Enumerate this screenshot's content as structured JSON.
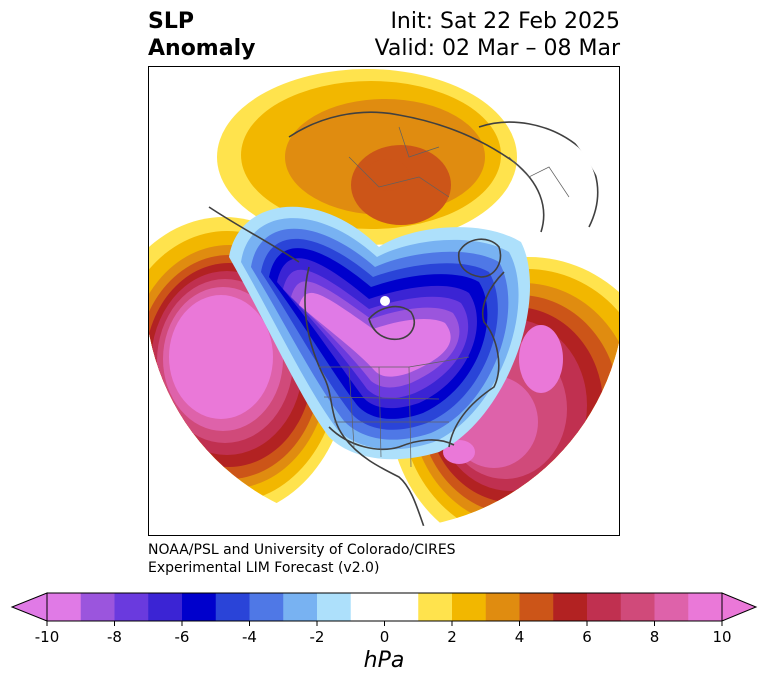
{
  "title": {
    "left_line1": "SLP",
    "left_line2": "Anomaly",
    "right_line1": "Init: Sat 22 Feb 2025",
    "right_line2": "Valid: 02 Mar – 08 Mar"
  },
  "credit": {
    "line1": "NOAA/PSL and University of Colorado/CIRES",
    "line2": "Experimental LIM Forecast (v2.0)"
  },
  "colorbar": {
    "unit": "hPa",
    "tick_labels": [
      "-10",
      "-8",
      "-6",
      "-4",
      "-2",
      "0",
      "2",
      "4",
      "6",
      "8",
      "10"
    ],
    "colors": [
      "#e07ae6",
      "#9b55dd",
      "#6a3ade",
      "#3b24d4",
      "#0000cc",
      "#2a44d8",
      "#4f78e6",
      "#78b2f2",
      "#ade0fb",
      "#ffffff",
      "#ffffff",
      "#ffe34d",
      "#f2b700",
      "#e08c10",
      "#cc5518",
      "#b22222",
      "#c03050",
      "#d04a7a",
      "#de62aa",
      "#ea78d8"
    ],
    "under_color": "#e07ae6",
    "over_color": "#ea78d8"
  }
}
